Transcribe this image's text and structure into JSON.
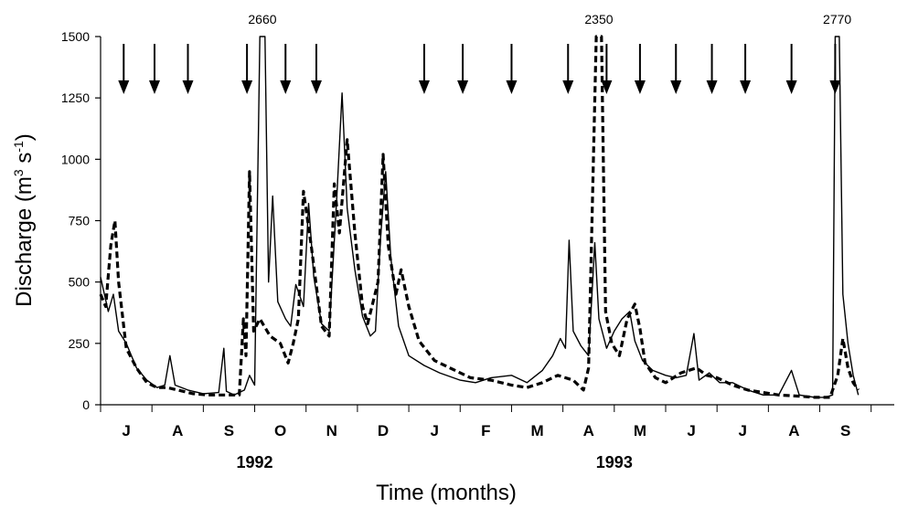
{
  "chart_data": {
    "type": "line",
    "xlabel": "Time (months)",
    "ylabel": "Discharge (m",
    "ylabel_sup1": "3",
    "ylabel_mid": " s",
    "ylabel_sup2": "-1",
    "ylabel_end": ")",
    "ylim": [
      0,
      1500
    ],
    "yticks": [
      "0",
      "250",
      "500",
      "750",
      "1000",
      "1250",
      "1500"
    ],
    "months": [
      "J",
      "A",
      "S",
      "O",
      "N",
      "D",
      "J",
      "F",
      "M",
      "A",
      "M",
      "J",
      "J",
      "A",
      "S"
    ],
    "years": [
      "1992",
      "1993"
    ],
    "peak_labels": [
      {
        "text": "2660",
        "series": "solid"
      },
      {
        "text": "2350",
        "series": "dashed"
      },
      {
        "text": "2770",
        "series": "solid"
      }
    ],
    "sampling_arrow_months": [
      0.45,
      1.05,
      1.7,
      2.85,
      3.6,
      4.2,
      6.3,
      7.05,
      8.0,
      9.1,
      9.85,
      10.5,
      11.2,
      11.9,
      12.55,
      13.45,
      14.3
    ],
    "series": [
      {
        "style": "solid",
        "points": [
          [
            0.0,
            520
          ],
          [
            0.15,
            380
          ],
          [
            0.25,
            450
          ],
          [
            0.35,
            300
          ],
          [
            0.5,
            250
          ],
          [
            0.7,
            150
          ],
          [
            0.9,
            100
          ],
          [
            1.1,
            70
          ],
          [
            1.25,
            80
          ],
          [
            1.35,
            200
          ],
          [
            1.45,
            80
          ],
          [
            1.7,
            60
          ],
          [
            2.0,
            45
          ],
          [
            2.3,
            50
          ],
          [
            2.4,
            230
          ],
          [
            2.45,
            55
          ],
          [
            2.6,
            40
          ],
          [
            2.8,
            60
          ],
          [
            2.9,
            120
          ],
          [
            3.0,
            80
          ],
          [
            3.1,
            1500
          ],
          [
            3.2,
            1500
          ],
          [
            3.27,
            500
          ],
          [
            3.35,
            850
          ],
          [
            3.45,
            420
          ],
          [
            3.6,
            350
          ],
          [
            3.7,
            320
          ],
          [
            3.8,
            490
          ],
          [
            3.95,
            400
          ],
          [
            4.05,
            820
          ],
          [
            4.15,
            520
          ],
          [
            4.3,
            330
          ],
          [
            4.45,
            300
          ],
          [
            4.6,
            850
          ],
          [
            4.7,
            1270
          ],
          [
            4.8,
            800
          ],
          [
            4.95,
            550
          ],
          [
            5.1,
            360
          ],
          [
            5.25,
            280
          ],
          [
            5.35,
            300
          ],
          [
            5.45,
            680
          ],
          [
            5.55,
            950
          ],
          [
            5.65,
            600
          ],
          [
            5.8,
            320
          ],
          [
            6.0,
            200
          ],
          [
            6.3,
            160
          ],
          [
            6.6,
            130
          ],
          [
            7.0,
            100
          ],
          [
            7.3,
            90
          ],
          [
            7.6,
            110
          ],
          [
            8.0,
            120
          ],
          [
            8.3,
            90
          ],
          [
            8.6,
            140
          ],
          [
            8.8,
            200
          ],
          [
            8.95,
            270
          ],
          [
            9.05,
            230
          ],
          [
            9.12,
            670
          ],
          [
            9.2,
            300
          ],
          [
            9.35,
            240
          ],
          [
            9.5,
            200
          ],
          [
            9.62,
            660
          ],
          [
            9.7,
            350
          ],
          [
            9.85,
            230
          ],
          [
            10.0,
            300
          ],
          [
            10.15,
            350
          ],
          [
            10.3,
            380
          ],
          [
            10.4,
            260
          ],
          [
            10.55,
            180
          ],
          [
            10.75,
            140
          ],
          [
            11.0,
            120
          ],
          [
            11.2,
            110
          ],
          [
            11.4,
            120
          ],
          [
            11.55,
            290
          ],
          [
            11.65,
            100
          ],
          [
            11.85,
            130
          ],
          [
            12.05,
            90
          ],
          [
            12.3,
            90
          ],
          [
            12.6,
            60
          ],
          [
            12.9,
            40
          ],
          [
            13.2,
            40
          ],
          [
            13.45,
            140
          ],
          [
            13.6,
            40
          ],
          [
            13.9,
            30
          ],
          [
            14.1,
            30
          ],
          [
            14.25,
            40
          ],
          [
            14.3,
            1500
          ],
          [
            14.38,
            1500
          ],
          [
            14.45,
            450
          ],
          [
            14.55,
            250
          ],
          [
            14.65,
            120
          ],
          [
            14.75,
            40
          ]
        ]
      },
      {
        "style": "dashed",
        "points": [
          [
            0.0,
            450
          ],
          [
            0.1,
            400
          ],
          [
            0.2,
            650
          ],
          [
            0.28,
            750
          ],
          [
            0.35,
            500
          ],
          [
            0.5,
            230
          ],
          [
            0.7,
            150
          ],
          [
            0.9,
            90
          ],
          [
            1.1,
            70
          ],
          [
            1.3,
            70
          ],
          [
            1.5,
            60
          ],
          [
            1.8,
            45
          ],
          [
            2.1,
            40
          ],
          [
            2.4,
            40
          ],
          [
            2.7,
            40
          ],
          [
            2.78,
            350
          ],
          [
            2.83,
            200
          ],
          [
            2.9,
            950
          ],
          [
            2.98,
            300
          ],
          [
            3.1,
            350
          ],
          [
            3.3,
            280
          ],
          [
            3.5,
            250
          ],
          [
            3.65,
            170
          ],
          [
            3.75,
            250
          ],
          [
            3.85,
            350
          ],
          [
            3.95,
            870
          ],
          [
            4.1,
            650
          ],
          [
            4.3,
            320
          ],
          [
            4.45,
            280
          ],
          [
            4.55,
            900
          ],
          [
            4.65,
            700
          ],
          [
            4.8,
            1080
          ],
          [
            4.95,
            700
          ],
          [
            5.1,
            400
          ],
          [
            5.2,
            330
          ],
          [
            5.4,
            500
          ],
          [
            5.5,
            1020
          ],
          [
            5.6,
            650
          ],
          [
            5.75,
            450
          ],
          [
            5.85,
            550
          ],
          [
            6.0,
            400
          ],
          [
            6.2,
            260
          ],
          [
            6.5,
            180
          ],
          [
            6.8,
            150
          ],
          [
            7.2,
            110
          ],
          [
            7.6,
            100
          ],
          [
            8.0,
            80
          ],
          [
            8.3,
            70
          ],
          [
            8.6,
            90
          ],
          [
            8.9,
            120
          ],
          [
            9.2,
            100
          ],
          [
            9.4,
            60
          ],
          [
            9.5,
            150
          ],
          [
            9.65,
            1500
          ],
          [
            9.75,
            1500
          ],
          [
            9.83,
            380
          ],
          [
            9.95,
            250
          ],
          [
            10.1,
            200
          ],
          [
            10.25,
            350
          ],
          [
            10.4,
            410
          ],
          [
            10.5,
            310
          ],
          [
            10.6,
            170
          ],
          [
            10.8,
            110
          ],
          [
            11.0,
            90
          ],
          [
            11.3,
            130
          ],
          [
            11.6,
            150
          ],
          [
            11.8,
            120
          ],
          [
            12.0,
            110
          ],
          [
            12.3,
            80
          ],
          [
            12.6,
            60
          ],
          [
            12.9,
            50
          ],
          [
            13.2,
            40
          ],
          [
            13.6,
            35
          ],
          [
            13.9,
            30
          ],
          [
            14.2,
            30
          ],
          [
            14.35,
            120
          ],
          [
            14.45,
            270
          ],
          [
            14.55,
            150
          ],
          [
            14.65,
            90
          ],
          [
            14.75,
            60
          ]
        ]
      }
    ]
  }
}
